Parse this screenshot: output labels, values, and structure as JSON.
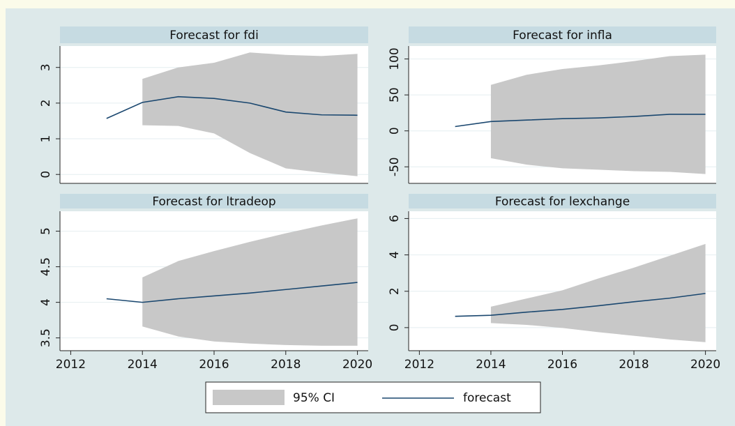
{
  "legend": [
    {
      "name": "95% CI",
      "color": "#c8c8c8"
    },
    {
      "name": "forecast",
      "color": "#1a476f"
    }
  ],
  "chart_data": [
    {
      "type": "line",
      "title": "Forecast for fdi",
      "x": [
        2013,
        2014,
        2015,
        2016,
        2017,
        2018,
        2019,
        2020
      ],
      "forecast": [
        1.57,
        2.02,
        2.18,
        2.13,
        2.0,
        1.75,
        1.67,
        1.66
      ],
      "ci_upper": [
        null,
        2.68,
        3.0,
        3.13,
        3.42,
        3.35,
        3.32,
        3.38
      ],
      "ci_lower": [
        null,
        1.38,
        1.36,
        1.15,
        0.6,
        0.17,
        0.05,
        -0.05
      ],
      "xlim": [
        2011.7,
        2020.3
      ],
      "ylim": [
        -0.25,
        3.6
      ],
      "yticks": [
        0,
        1,
        2,
        3
      ],
      "grid": true
    },
    {
      "type": "line",
      "title": "Forecast for infla",
      "x": [
        2013,
        2014,
        2015,
        2016,
        2017,
        2018,
        2019,
        2020
      ],
      "forecast": [
        6,
        13,
        15,
        17,
        18,
        20,
        23,
        23
      ],
      "ci_upper": [
        null,
        64,
        78,
        86,
        91,
        97,
        104,
        106
      ],
      "ci_lower": [
        null,
        -38,
        -47,
        -52,
        -54,
        -56,
        -57,
        -60
      ],
      "xlim": [
        2011.7,
        2020.3
      ],
      "ylim": [
        -73,
        118
      ],
      "yticks": [
        -50,
        0,
        50,
        100
      ],
      "grid": true
    },
    {
      "type": "line",
      "title": "Forecast for ltradeop",
      "x": [
        2013,
        2014,
        2015,
        2016,
        2017,
        2018,
        2019,
        2020
      ],
      "forecast": [
        4.05,
        4.0,
        4.05,
        4.09,
        4.13,
        4.18,
        4.23,
        4.28
      ],
      "ci_upper": [
        null,
        4.35,
        4.58,
        4.72,
        4.85,
        4.97,
        5.08,
        5.18
      ],
      "ci_lower": [
        null,
        3.66,
        3.52,
        3.45,
        3.42,
        3.4,
        3.39,
        3.39
      ],
      "xlim": [
        2011.7,
        2020.3
      ],
      "xticks": [
        2012,
        2014,
        2016,
        2018,
        2020
      ],
      "ylim": [
        3.32,
        5.28
      ],
      "yticks": [
        3.5,
        4,
        4.5,
        5
      ],
      "grid": true
    },
    {
      "type": "line",
      "title": "Forecast for lexchange",
      "x": [
        2013,
        2014,
        2015,
        2016,
        2017,
        2018,
        2019,
        2020
      ],
      "forecast": [
        0.62,
        0.68,
        0.85,
        1.0,
        1.2,
        1.42,
        1.62,
        1.88
      ],
      "ci_upper": [
        null,
        1.15,
        1.6,
        2.05,
        2.7,
        3.3,
        3.95,
        4.6
      ],
      "ci_lower": [
        null,
        0.25,
        0.15,
        -0.02,
        -0.25,
        -0.45,
        -0.65,
        -0.8
      ],
      "xlim": [
        2011.7,
        2020.3
      ],
      "xticks": [
        2012,
        2014,
        2016,
        2018,
        2020
      ],
      "ylim": [
        -1.27,
        6.4
      ],
      "yticks": [
        0,
        2,
        4,
        6
      ],
      "grid": true
    }
  ]
}
